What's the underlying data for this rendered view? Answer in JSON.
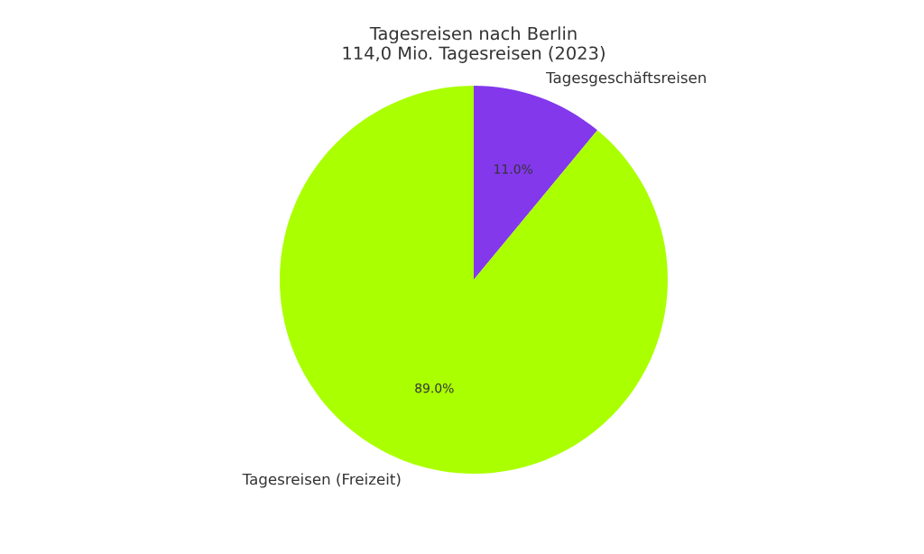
{
  "chart_data": {
    "type": "pie",
    "title": "Tagesreisen nach Berlin",
    "subtitle": "114,0 Mio. Tagesreisen (2023)",
    "categories": [
      "Tagesgeschäftsreisen",
      "Tagesreisen (Freizeit)"
    ],
    "values": [
      11.0,
      89.0
    ],
    "colors": [
      "#8338ec",
      "#aaff00"
    ],
    "value_labels": [
      "11.0%",
      "89.0%"
    ]
  }
}
